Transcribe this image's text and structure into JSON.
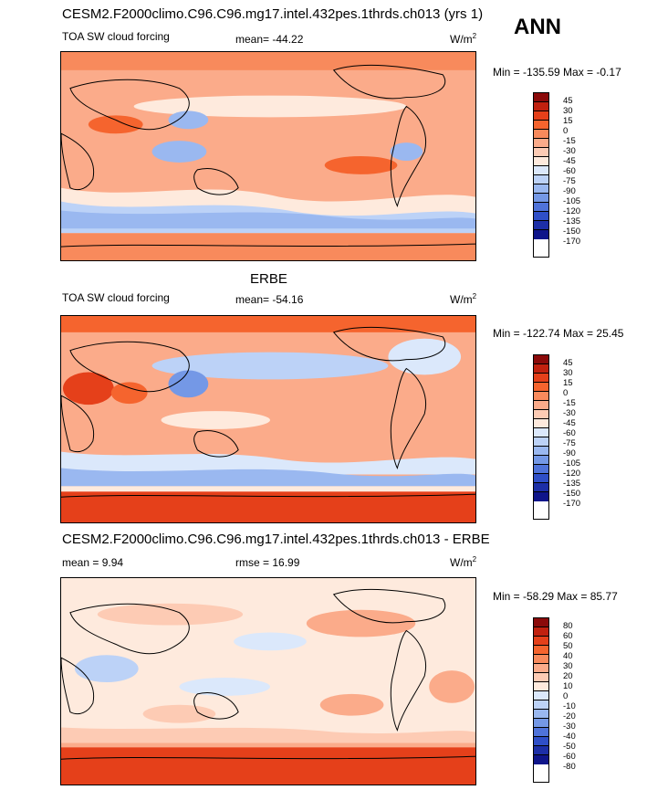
{
  "header": {
    "run_title": "CESM2.F2000climo.C96.C96.mg17.intel.432pes.1thrds.ch013 (yrs 1)",
    "season": "ANN"
  },
  "chart_data": [
    {
      "type": "heatmap",
      "panel": "model",
      "field": "TOA SW cloud forcing",
      "stat_text": "mean= -44.22",
      "units": "W/m",
      "units_sup": "2",
      "minmax_text": "Min = -135.59 Max =  -0.17",
      "levels": [
        "45",
        "30",
        "15",
        "0",
        "-15",
        "-30",
        "-45",
        "-60",
        "-75",
        "-90",
        "-105",
        "-120",
        "-135",
        "-150",
        "-170"
      ],
      "colors": [
        "#8b0a0a",
        "#c1210f",
        "#e5401a",
        "#f5642e",
        "#f88a5c",
        "#fbab8a",
        "#fdcbb4",
        "#feeadd",
        "#dbe8fb",
        "#bcd2f7",
        "#9ab8f0",
        "#7498e6",
        "#4f73da",
        "#2f4fc8",
        "#1d2fa7",
        "#0f158a"
      ]
    },
    {
      "type": "heatmap",
      "panel": "obs",
      "title": "ERBE",
      "field": "TOA SW cloud forcing",
      "stat_text": "mean= -54.16",
      "units": "W/m",
      "units_sup": "2",
      "minmax_text": "Min = -122.74 Max =  25.45",
      "levels": [
        "45",
        "30",
        "15",
        "0",
        "-15",
        "-30",
        "-45",
        "-60",
        "-75",
        "-90",
        "-105",
        "-120",
        "-135",
        "-150",
        "-170"
      ],
      "colors": [
        "#8b0a0a",
        "#c1210f",
        "#e5401a",
        "#f5642e",
        "#f88a5c",
        "#fbab8a",
        "#fdcbb4",
        "#feeadd",
        "#dbe8fb",
        "#bcd2f7",
        "#9ab8f0",
        "#7498e6",
        "#4f73da",
        "#2f4fc8",
        "#1d2fa7",
        "#0f158a"
      ]
    },
    {
      "type": "heatmap",
      "panel": "diff",
      "title": "CESM2.F2000climo.C96.C96.mg17.intel.432pes.1thrds.ch013 - ERBE",
      "stat_text": "mean =   9.94",
      "stat2_text": "rmse =  16.99",
      "units": "W/m",
      "units_sup": "2",
      "minmax_text": "Min = -58.29 Max =  85.77",
      "levels": [
        "80",
        "60",
        "50",
        "40",
        "30",
        "20",
        "10",
        "0",
        "-10",
        "-20",
        "-30",
        "-40",
        "-50",
        "-60",
        "-80"
      ],
      "colors": [
        "#8b0a0a",
        "#c1210f",
        "#e5401a",
        "#f5642e",
        "#f88a5c",
        "#fbab8a",
        "#fdcbb4",
        "#feeadd",
        "#dbe8fb",
        "#bcd2f7",
        "#9ab8f0",
        "#7498e6",
        "#4f73da",
        "#2f4fc8",
        "#1d2fa7",
        "#0f158a"
      ]
    }
  ]
}
